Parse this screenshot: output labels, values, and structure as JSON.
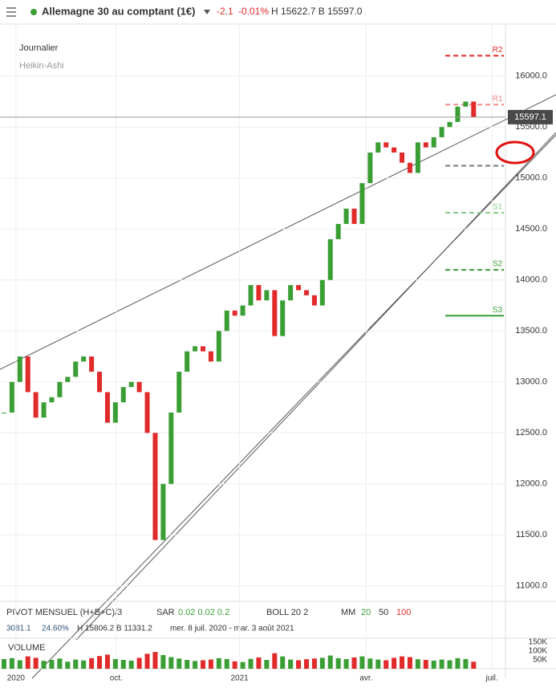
{
  "header": {
    "title": "Allemagne 30 au comptant (1€)",
    "change": "-2.1",
    "change_pct": "-0.01%",
    "high_low": "H 15622.7 B 15597.0"
  },
  "labels": {
    "timeframe": "Journalier",
    "style": "Heikin-Ashi"
  },
  "indicators": [
    "PIVOT  MENSUEL  (H+B+C)/3",
    "SAR",
    "0.02  0.02  0.2",
    "BOLL  20  2",
    "MM",
    "20",
    "50",
    "100"
  ],
  "stats": [
    "3081.1",
    "24.60%",
    "H 15806.2  B 11331.2",
    "mer. 8 juil. 2020 - mar. 3 août 2021"
  ],
  "chart_data": {
    "type": "candlestick",
    "closes": [
      12700,
      13000,
      13250,
      12900,
      12650,
      12800,
      12850,
      13000,
      13050,
      13200,
      13250,
      13100,
      12900,
      12600,
      12800,
      12950,
      13000,
      12900,
      12500,
      11450,
      12000,
      12700,
      13100,
      13300,
      13350,
      13300,
      13200,
      13500,
      13700,
      13650,
      13750,
      13950,
      13800,
      13900,
      13450,
      13800,
      13950,
      13900,
      13850,
      13750,
      14000,
      14400,
      14550,
      14700,
      14550,
      14950,
      15250,
      15350,
      15300,
      15250,
      15150,
      15050,
      15350,
      15300,
      15400,
      15500,
      15550,
      15700,
      15750,
      15597
    ],
    "up_color": "#3a9e35",
    "down_color": "#e12a2a",
    "xlim": [
      -0.5,
      63
    ],
    "xticks": [
      {
        "value": 1.5,
        "label": "2020"
      },
      {
        "value": 14.1,
        "label": "oct."
      },
      {
        "value": 29.6,
        "label": "2021"
      },
      {
        "value": 45.5,
        "label": "avr."
      },
      {
        "value": 61.3,
        "label": "juil."
      }
    ],
    "ylim": [
      10880,
      16510
    ],
    "yticks": [
      {
        "value": 11000,
        "label": "11000.0"
      },
      {
        "value": 11500,
        "label": "11500.0"
      },
      {
        "value": 12000,
        "label": "12000.0"
      },
      {
        "value": 12500,
        "label": "12500.0"
      },
      {
        "value": 13000,
        "label": "13000.0"
      },
      {
        "value": 13500,
        "label": "13500.0"
      },
      {
        "value": 14000,
        "label": "14000.0"
      },
      {
        "value": 14500,
        "label": "14500.0"
      },
      {
        "value": 15000,
        "label": "15000.0"
      },
      {
        "value": 15500,
        "label": "15500.0"
      },
      {
        "value": 16000,
        "label": "16000.0"
      }
    ],
    "grid": true,
    "last_price": 15597.1,
    "pivots": [
      {
        "name": "R2",
        "value": 16200,
        "color": "#e12a2a",
        "dashed": true
      },
      {
        "name": "R1",
        "value": 15720,
        "color": "#e88",
        "dashed": true
      },
      {
        "value": 15120,
        "color": "#777",
        "dashed": true
      },
      {
        "name": "S1",
        "value": 14660,
        "color": "#8c8",
        "dashed": true
      },
      {
        "name": "S2",
        "value": 14100,
        "color": "#3a9e35",
        "dashed": true
      },
      {
        "name": "S3",
        "value": 13650,
        "color": "#3a9e35",
        "dashed": false
      }
    ],
    "volume": {
      "title": "VOLUME",
      "values": [
        55,
        60,
        48,
        70,
        62,
        45,
        50,
        58,
        40,
        52,
        47,
        60,
        72,
        80,
        55,
        50,
        46,
        62,
        85,
        95,
        78,
        66,
        58,
        50,
        44,
        48,
        52,
        60,
        55,
        42,
        38,
        56,
        64,
        50,
        88,
        70,
        52,
        48,
        54,
        58,
        62,
        75,
        60,
        55,
        64,
        70,
        58,
        52,
        48,
        62,
        70,
        66,
        54,
        50,
        46,
        52,
        48,
        60,
        55,
        40
      ],
      "ylim": [
        0,
        164
      ],
      "yticks": [
        {
          "value": 50,
          "label": "50K"
        },
        {
          "value": 100,
          "label": "100K"
        },
        {
          "value": 150,
          "label": "150K"
        }
      ]
    }
  }
}
